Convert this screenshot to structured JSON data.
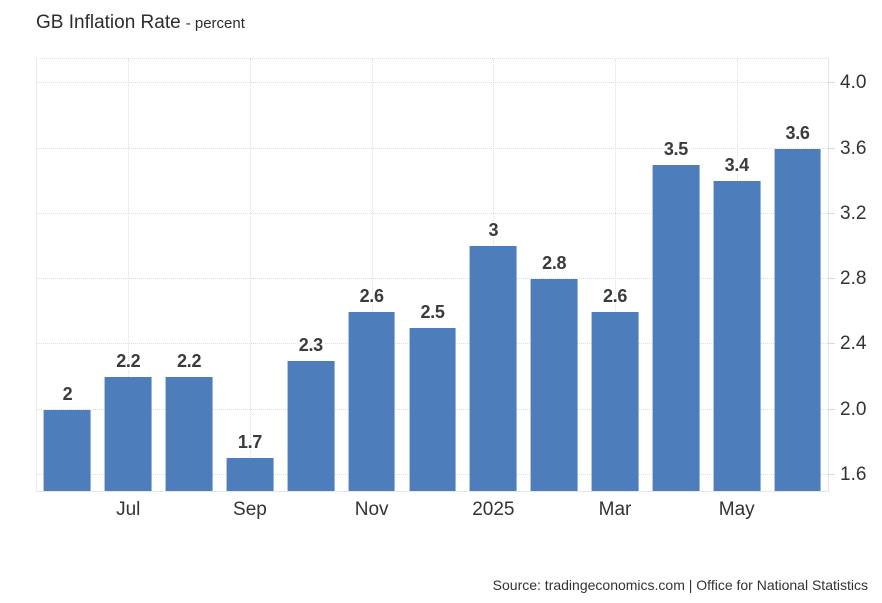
{
  "header": {
    "title": "GB Inflation Rate",
    "subtitle": "- percent"
  },
  "footer": {
    "source": "Source: tradingeconomics.com | Office for National Statistics"
  },
  "colors": {
    "bar": "#4d7dbb",
    "axis_text": "#333333",
    "value_label_text": "#3b3b3b",
    "gridline": "#dedede"
  },
  "chart_data": {
    "type": "bar",
    "title": "GB Inflation Rate",
    "subtitle": "- percent",
    "ylabel": "percent",
    "values": [
      2,
      2.2,
      2.2,
      1.7,
      2.3,
      2.6,
      2.5,
      3,
      2.8,
      2.6,
      3.5,
      3.4,
      3.6
    ],
    "bar_value_labels": [
      "2",
      "2.2",
      "2.2",
      "1.7",
      "2.3",
      "2.6",
      "2.5",
      "3",
      "2.8",
      "2.6",
      "3.5",
      "3.4",
      "3.6"
    ],
    "x_ticks": [
      {
        "label": "Jul",
        "bar_index": 1
      },
      {
        "label": "Sep",
        "bar_index": 3
      },
      {
        "label": "Nov",
        "bar_index": 5
      },
      {
        "label": "2025",
        "bar_index": 7
      },
      {
        "label": "Mar",
        "bar_index": 9
      },
      {
        "label": "May",
        "bar_index": 11
      }
    ],
    "y_ticks": [
      "1.6",
      "2.0",
      "2.4",
      "2.8",
      "3.2",
      "3.6",
      "4.0"
    ],
    "ylim": [
      1.5,
      4.15
    ],
    "grid": "dotted horizontal and vertical",
    "legend": "none",
    "bar_color": "#4d7dbb",
    "source": "Source: tradingeconomics.com | Office for National Statistics"
  }
}
